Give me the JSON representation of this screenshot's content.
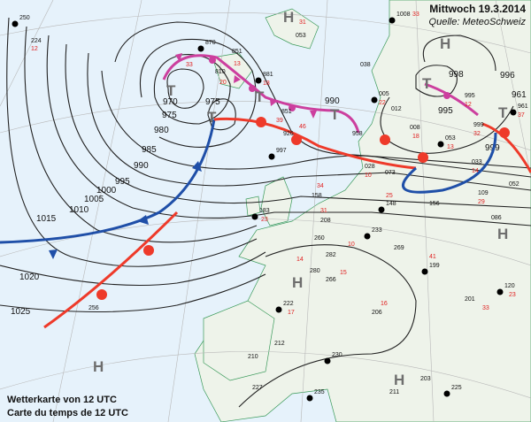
{
  "header": {
    "title": "Mittwoch 19.3.2014",
    "source": "Quelle: MeteoSchweiz"
  },
  "caption": {
    "line1": "Wetterkarte von 12 UTC",
    "line2": "Carte du temps de 12 UTC"
  },
  "colors": {
    "sea": "#e6f2fb",
    "land": "#eef3ea",
    "coast": "#3a9a5a",
    "cold_front": "#1f4fa8",
    "warm_front": "#ee3a2a",
    "occluded_front": "#cc3f9e",
    "isobar": "#222222",
    "center_label": "#6e6e6e",
    "station_red": "#e02020"
  },
  "pressure_centers": [
    {
      "label": "T",
      "type": "low"
    },
    {
      "label": "T",
      "type": "low"
    },
    {
      "label": "T",
      "type": "low"
    },
    {
      "label": "T",
      "type": "low"
    },
    {
      "label": "T",
      "type": "low"
    },
    {
      "label": "T",
      "type": "low"
    },
    {
      "label": "H",
      "type": "high"
    },
    {
      "label": "H",
      "type": "high"
    },
    {
      "label": "H",
      "type": "high"
    },
    {
      "label": "H",
      "type": "high"
    },
    {
      "label": "H",
      "type": "high"
    },
    {
      "label": "H",
      "type": "high"
    }
  ],
  "isobar_labels": [
    "970",
    "975",
    "975",
    "980",
    "985",
    "990",
    "995",
    "1000",
    "1005",
    "1010",
    "1015",
    "1020",
    "1025",
    "990",
    "998",
    "996",
    "995",
    "999",
    "961"
  ],
  "fronts": [
    "cold",
    "warm",
    "occluded"
  ],
  "stations": [
    {
      "v": "250",
      "red": false
    },
    {
      "v": "224",
      "red": false
    },
    {
      "v": "12",
      "red": true
    },
    {
      "v": "870",
      "red": false
    },
    {
      "v": "33",
      "red": true
    },
    {
      "v": "851",
      "red": false
    },
    {
      "v": "13",
      "red": true
    },
    {
      "v": "810",
      "red": false
    },
    {
      "v": "20",
      "red": true
    },
    {
      "v": "881",
      "red": false
    },
    {
      "v": "18",
      "red": true
    },
    {
      "v": "851",
      "red": false
    },
    {
      "v": "39",
      "red": true
    },
    {
      "v": "926",
      "red": false
    },
    {
      "v": "46",
      "red": true
    },
    {
      "v": "997",
      "red": false
    },
    {
      "v": "053",
      "red": false
    },
    {
      "v": "31",
      "red": true
    },
    {
      "v": "1008",
      "red": false
    },
    {
      "v": "33",
      "red": true
    },
    {
      "v": "038",
      "red": false
    },
    {
      "v": "005",
      "red": false
    },
    {
      "v": "22",
      "red": true
    },
    {
      "v": "008",
      "red": false
    },
    {
      "v": "18",
      "red": true
    },
    {
      "v": "012",
      "red": false
    },
    {
      "v": "995",
      "red": false
    },
    {
      "v": "12",
      "red": true
    },
    {
      "v": "999",
      "red": false
    },
    {
      "v": "32",
      "red": true
    },
    {
      "v": "053",
      "red": false
    },
    {
      "v": "13",
      "red": true
    },
    {
      "v": "033",
      "red": false
    },
    {
      "v": "14",
      "red": true
    },
    {
      "v": "958",
      "red": false
    },
    {
      "v": "028",
      "red": false
    },
    {
      "v": "10",
      "red": true
    },
    {
      "v": "073",
      "red": false
    },
    {
      "v": "158",
      "red": false
    },
    {
      "v": "34",
      "red": true
    },
    {
      "v": "208",
      "red": false
    },
    {
      "v": "31",
      "red": true
    },
    {
      "v": "148",
      "red": false
    },
    {
      "v": "25",
      "red": true
    },
    {
      "v": "156",
      "red": false
    },
    {
      "v": "233",
      "red": false
    },
    {
      "v": "260",
      "red": false
    },
    {
      "v": "282",
      "red": false
    },
    {
      "v": "10",
      "red": true
    },
    {
      "v": "269",
      "red": false
    },
    {
      "v": "280",
      "red": false
    },
    {
      "v": "14",
      "red": true
    },
    {
      "v": "266",
      "red": false
    },
    {
      "v": "15",
      "red": true
    },
    {
      "v": "183",
      "red": false
    },
    {
      "v": "23",
      "red": true
    },
    {
      "v": "256",
      "red": false
    },
    {
      "v": "222",
      "red": false
    },
    {
      "v": "17",
      "red": true
    },
    {
      "v": "212",
      "red": false
    },
    {
      "v": "230",
      "red": false
    },
    {
      "v": "210",
      "red": false
    },
    {
      "v": "227",
      "red": false
    },
    {
      "v": "235",
      "red": false
    },
    {
      "v": "211",
      "red": false
    },
    {
      "v": "203",
      "red": false
    },
    {
      "v": "225",
      "red": false
    },
    {
      "v": "201",
      "red": false
    },
    {
      "v": "33",
      "red": true
    },
    {
      "v": "120",
      "red": false
    },
    {
      "v": "23",
      "red": true
    },
    {
      "v": "086",
      "red": false
    },
    {
      "v": "961",
      "red": false
    },
    {
      "v": "37",
      "red": true
    },
    {
      "v": "052",
      "red": false
    },
    {
      "v": "199",
      "red": false
    },
    {
      "v": "41",
      "red": true
    },
    {
      "v": "206",
      "red": false
    },
    {
      "v": "16",
      "red": true
    },
    {
      "v": "109",
      "red": false
    },
    {
      "v": "29",
      "red": true
    }
  ]
}
